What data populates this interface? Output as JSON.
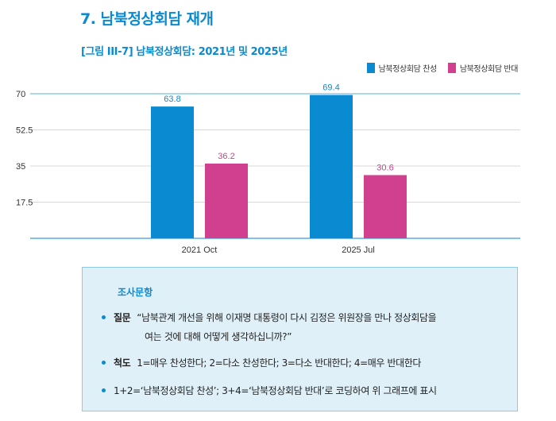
{
  "header": {
    "title": "7.  남북정상회담 재개",
    "subtitle": "[그림 III-7] 남북정상회담: 2021년 및 2025년"
  },
  "chart_data": {
    "type": "bar",
    "title": "[그림 III-7] 남북정상회담: 2021년 및 2025년",
    "categories": [
      "2021 Oct",
      "2025 Jul"
    ],
    "series": [
      {
        "name": "남북정상회담 찬성",
        "color": "#0a8ad0",
        "values": [
          63.8,
          69.4
        ]
      },
      {
        "name": "남북정상회담 반대",
        "color": "#d13f8f",
        "values": [
          36.2,
          30.6
        ]
      }
    ],
    "yticks": [
      "17.5",
      "35",
      "52.5",
      "70"
    ],
    "ylim": [
      0,
      70
    ],
    "xlabel": "",
    "ylabel": "",
    "grid": true,
    "legend": "top-right"
  },
  "survey": {
    "title": "조사문항",
    "question_label": "질문",
    "question_line1": "“남북관계 개선을 위해 이재명 대통령이 다시 김정은 위원장을 만나 정상회담을",
    "question_line2": "여는 것에 대해 어떻게 생각하십니까?”",
    "scale_label": "척도",
    "scale_text": "1=매우 찬성한다; 2=다소 찬성한다; 3=다소 반대한다; 4=매우 반대한다",
    "coding_text": "1+2=‘남북정상회담 찬성’; 3+4=‘남북정상회담 반대’로 코딩하여 위 그래프에 표시"
  }
}
